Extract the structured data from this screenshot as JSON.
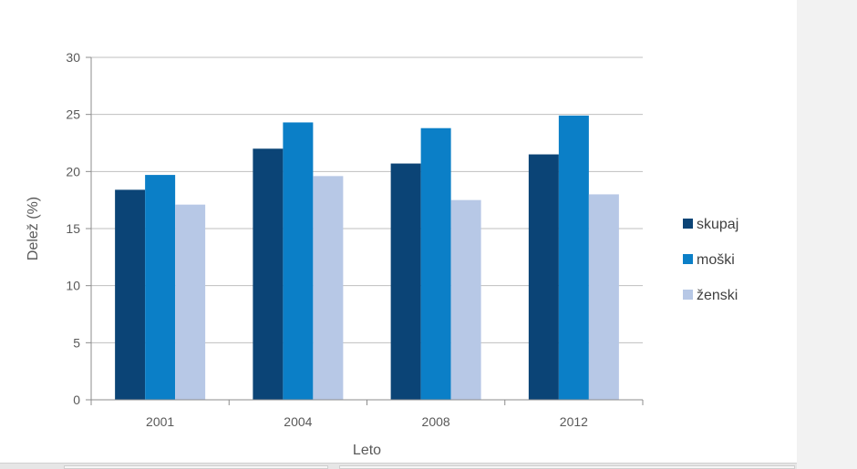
{
  "chart_data": {
    "type": "bar",
    "title": "",
    "xlabel": "Leto",
    "ylabel": "Delež (%)",
    "ylim": [
      0,
      30
    ],
    "yticks": [
      0,
      5,
      10,
      15,
      20,
      25,
      30
    ],
    "categories": [
      "2001",
      "2004",
      "2008",
      "2012"
    ],
    "series": [
      {
        "name": "skupaj",
        "color": "#0b4476",
        "values": [
          18.4,
          22.0,
          20.7,
          21.5
        ]
      },
      {
        "name": "moški",
        "color": "#0b7fc7",
        "values": [
          19.7,
          24.3,
          23.8,
          24.9
        ]
      },
      {
        "name": "ženski",
        "color": "#b7c8e6",
        "values": [
          17.1,
          19.6,
          17.5,
          18.0
        ]
      }
    ],
    "grid": true,
    "legend": "right"
  }
}
